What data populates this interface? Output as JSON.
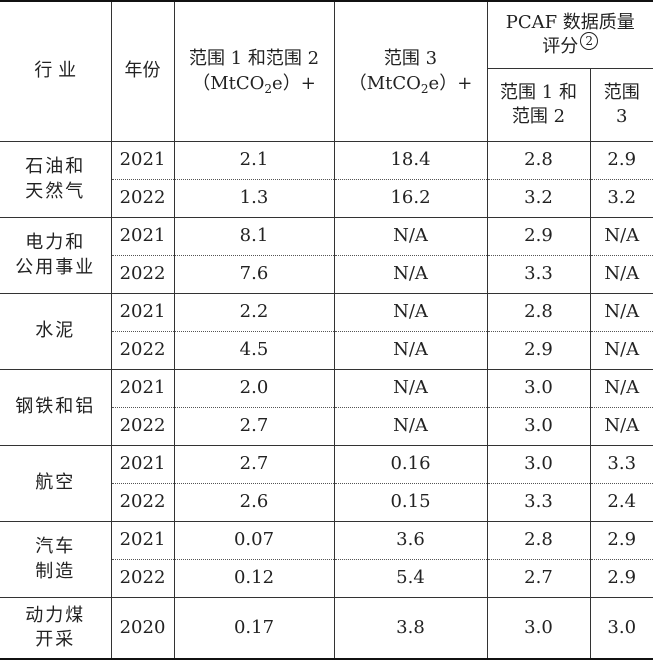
{
  "headers": {
    "industry": "行 业",
    "year": "年份",
    "scope12_line1": "范围 1 和范围 2",
    "scope12_line2_pre": "（MtCO",
    "scope12_sub": "2",
    "scope12_line2_post": "e）+",
    "scope3_line1": "范围 3",
    "scope3_line2_pre": "（MtCO",
    "scope3_sub": "2",
    "scope3_line2_post": "e）+",
    "pcaf_line1": "PCAF 数据质量",
    "pcaf_line2": "评分",
    "pcaf_note": "2",
    "pcaf_scope12_line1": "范围 1 和",
    "pcaf_scope12_line2": "范围 2",
    "pcaf_scope3_line1": "范围",
    "pcaf_scope3_line2": "3"
  },
  "groups": [
    {
      "industry_lines": [
        "石油和",
        "天然气"
      ],
      "rows": [
        {
          "year": "2021",
          "s12": "2.1",
          "s3": "18.4",
          "q12": "2.8",
          "q3": "2.9"
        },
        {
          "year": "2022",
          "s12": "1.3",
          "s3": "16.2",
          "q12": "3.2",
          "q3": "3.2"
        }
      ]
    },
    {
      "industry_lines": [
        "电力和",
        "公用事业"
      ],
      "rows": [
        {
          "year": "2021",
          "s12": "8.1",
          "s3": "N/A",
          "q12": "2.9",
          "q3": "N/A"
        },
        {
          "year": "2022",
          "s12": "7.6",
          "s3": "N/A",
          "q12": "3.3",
          "q3": "N/A"
        }
      ]
    },
    {
      "industry_lines": [
        "水泥"
      ],
      "rows": [
        {
          "year": "2021",
          "s12": "2.2",
          "s3": "N/A",
          "q12": "2.8",
          "q3": "N/A"
        },
        {
          "year": "2022",
          "s12": "4.5",
          "s3": "N/A",
          "q12": "2.9",
          "q3": "N/A"
        }
      ]
    },
    {
      "industry_lines": [
        "钢铁和铝"
      ],
      "rows": [
        {
          "year": "2021",
          "s12": "2.0",
          "s3": "N/A",
          "q12": "3.0",
          "q3": "N/A"
        },
        {
          "year": "2022",
          "s12": "2.7",
          "s3": "N/A",
          "q12": "3.0",
          "q3": "N/A"
        }
      ]
    },
    {
      "industry_lines": [
        "航空"
      ],
      "rows": [
        {
          "year": "2021",
          "s12": "2.7",
          "s3": "0.16",
          "q12": "3.0",
          "q3": "3.3"
        },
        {
          "year": "2022",
          "s12": "2.6",
          "s3": "0.15",
          "q12": "3.3",
          "q3": "2.4"
        }
      ]
    },
    {
      "industry_lines": [
        "汽车",
        "制造"
      ],
      "rows": [
        {
          "year": "2021",
          "s12": "0.07",
          "s3": "3.6",
          "q12": "2.8",
          "q3": "2.9"
        },
        {
          "year": "2022",
          "s12": "0.12",
          "s3": "5.4",
          "q12": "2.7",
          "q3": "2.9"
        }
      ]
    },
    {
      "industry_lines": [
        "动力煤",
        "开采"
      ],
      "rows": [
        {
          "year": "2020",
          "s12": "0.17",
          "s3": "3.8",
          "q12": "3.0",
          "q3": "3.0"
        }
      ]
    }
  ]
}
